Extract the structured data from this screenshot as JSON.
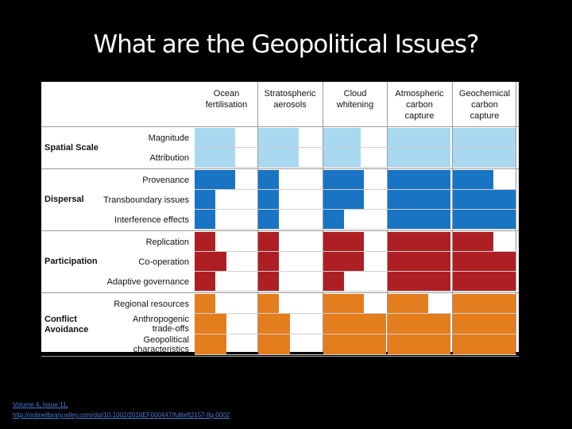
{
  "title": "What are the Geopolitical Issues?",
  "colors": {
    "spatial": "#a9d8f1",
    "dispersal": "#1974c3",
    "participation": "#ad1f23",
    "conflict": "#e47d1e",
    "grid": "#9a9a9a"
  },
  "columns": [
    [
      "Ocean",
      "fertilisation"
    ],
    [
      "Stratospheric",
      "aerosols"
    ],
    [
      "Cloud",
      "whitening"
    ],
    [
      "Atmospheric",
      "carbon",
      "capture"
    ],
    [
      "Geochemical",
      "carbon",
      "capture"
    ]
  ],
  "groups": [
    {
      "label": [
        "Spatial Scale"
      ],
      "color_key": "spatial",
      "rows": [
        {
          "label": [
            "Magnitude"
          ],
          "fills": [
            0.65,
            0.65,
            0.6,
            1,
            1
          ]
        },
        {
          "label": [
            "Attribution"
          ],
          "fills": [
            0.65,
            0.65,
            0.6,
            1,
            1
          ]
        }
      ]
    },
    {
      "label": [
        "Dispersal"
      ],
      "color_key": "dispersal",
      "rows": [
        {
          "label": [
            "Provenance"
          ],
          "fills": [
            0.65,
            0.33,
            0.65,
            1,
            0.65
          ]
        },
        {
          "label": [
            "Transboundary issues"
          ],
          "fills": [
            0.33,
            0.33,
            0.65,
            1,
            1
          ]
        },
        {
          "label": [
            "Interference effects"
          ],
          "fills": [
            0.33,
            0.33,
            0.33,
            1,
            1
          ]
        }
      ]
    },
    {
      "label": [
        "Participation"
      ],
      "color_key": "participation",
      "rows": [
        {
          "label": [
            "Replication"
          ],
          "fills": [
            0.33,
            0.33,
            0.65,
            1,
            0.65
          ]
        },
        {
          "label": [
            "Co-operation"
          ],
          "fills": [
            0.5,
            0.33,
            0.65,
            1,
            1
          ]
        },
        {
          "label": [
            "Adaptive governance"
          ],
          "fills": [
            0.33,
            0.33,
            0.33,
            1,
            1
          ]
        }
      ]
    },
    {
      "label": [
        "Conflict",
        "Avoidance"
      ],
      "color_key": "conflict",
      "rows": [
        {
          "label": [
            "Regional resources"
          ],
          "fills": [
            0.33,
            0.33,
            0.65,
            0.65,
            1
          ]
        },
        {
          "label": [
            "Anthropogenic",
            "trade-offs"
          ],
          "fills": [
            0.5,
            0.5,
            1,
            1,
            1
          ]
        },
        {
          "label": [
            "Geopolitical",
            "characteristics"
          ],
          "fills": [
            0.5,
            0.5,
            1,
            1,
            1
          ]
        }
      ]
    }
  ],
  "source": {
    "line1": "Volume 4, Issue 11,",
    "line2": "http://onlinelibrary.wiley.com/doi/10.1002/2016EF000447/fullteft2157-fig-0002"
  }
}
